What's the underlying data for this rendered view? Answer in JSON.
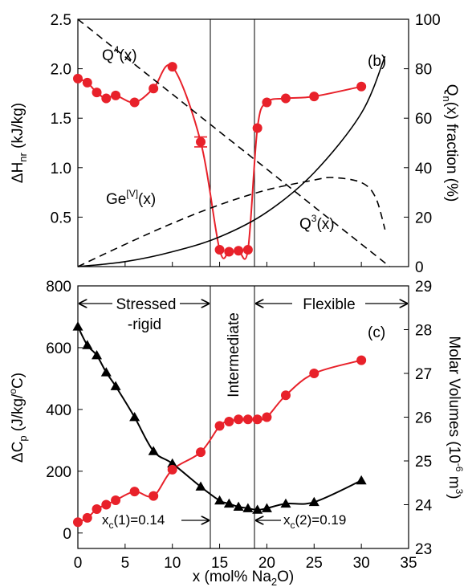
{
  "colors": {
    "red": "#e8212a",
    "black": "#000000"
  },
  "chart_data": [
    {
      "panel": "(b)",
      "type": "line",
      "ylabel_left": {
        "base": "ΔH",
        "sub": "nr",
        "rest": " (kJ/kg)"
      },
      "ylabel_right": {
        "base": "Q",
        "sub": "n",
        "rest": "(x) fraction (%)"
      },
      "xlim": [
        0,
        35
      ],
      "ylim_left": [
        0,
        2.5
      ],
      "ylim_right": [
        0,
        100
      ],
      "yticks_left": [
        "0.5",
        "1.0",
        "1.5",
        "2.0",
        "2.5"
      ],
      "yticks_left_values": [
        0.5,
        1.0,
        1.5,
        2.0,
        2.5
      ],
      "yticks_right": [
        "0",
        "20",
        "40",
        "60",
        "80",
        "100"
      ],
      "yticks_right_values": [
        0,
        20,
        40,
        60,
        80,
        100
      ],
      "grid": false,
      "series": [
        {
          "name": "ΔHnr",
          "axis": "left",
          "color": "red",
          "style": "markers+smooth",
          "x": [
            0,
            1,
            2,
            3,
            4,
            6,
            8,
            10,
            13,
            15,
            16,
            17,
            18,
            19,
            20,
            22,
            25,
            30
          ],
          "y": [
            1.9,
            1.86,
            1.76,
            1.7,
            1.73,
            1.66,
            1.8,
            2.02,
            1.26,
            0.17,
            0.15,
            0.16,
            0.17,
            1.4,
            1.66,
            1.7,
            1.72,
            1.82
          ],
          "error_bar": {
            "x": 13,
            "y": 1.26,
            "err": 0.05
          }
        },
        {
          "name": "Q4(x)",
          "axis": "right",
          "style": "dashed",
          "x": [
            0,
            5,
            10,
            15,
            20,
            25,
            30,
            33
          ],
          "y": [
            100,
            84.8,
            69.7,
            54.5,
            39.4,
            24.2,
            9.1,
            0
          ]
        },
        {
          "name": "Q3(x)",
          "axis": "right",
          "style": "solid",
          "x": [
            0,
            5,
            10,
            15,
            20,
            25,
            30,
            32.5
          ],
          "y": [
            0,
            2,
            6,
            12,
            22,
            38,
            62,
            85
          ]
        },
        {
          "name": "Ge[V](x)",
          "axis": "right",
          "style": "dashed",
          "x": [
            0,
            5,
            10,
            15,
            20,
            25,
            27,
            30,
            31.5,
            32.5
          ],
          "y": [
            0,
            9,
            17.5,
            25,
            31,
            35,
            36,
            34,
            28,
            15
          ]
        }
      ],
      "annotations": [
        {
          "base": "Q",
          "sup": "4",
          "rest": "(x)",
          "x": 2.5,
          "y_right": 91
        },
        {
          "base": "Q",
          "sup": "3",
          "rest": "(x)",
          "x": 25.5,
          "y_right": 10
        },
        {
          "base": "Ge",
          "sup": "[V]",
          "rest": "(x)",
          "x": 3,
          "y_right": 27
        },
        {
          "base": "(b)",
          "x": 32,
          "y_right": 88
        }
      ],
      "vlines": [
        14,
        19
      ]
    },
    {
      "panel": "(c)",
      "type": "line",
      "xlabel": {
        "base": "x (mol% Na",
        "sub": "2",
        "rest": "O)"
      },
      "ylabel_left": {
        "base": "ΔC",
        "sub": "p",
        "rest": " (J/kg/",
        "sup": "o",
        "rest2": "C)"
      },
      "ylabel_right": {
        "base": "Molar Volumes (10",
        "sup": "-6",
        "rest": " m",
        "sup2": "3",
        "rest2": ")"
      },
      "xlim": [
        0,
        35
      ],
      "ylim_left": [
        -50,
        800
      ],
      "ylim_right": [
        23,
        29
      ],
      "xticks": [
        "0",
        "5",
        "10",
        "15",
        "20",
        "25",
        "30",
        "35"
      ],
      "xticks_values": [
        0,
        5,
        10,
        15,
        20,
        25,
        30,
        35
      ],
      "yticks_left": [
        "0",
        "200",
        "400",
        "600",
        "800"
      ],
      "yticks_left_values": [
        0,
        200,
        400,
        600,
        800
      ],
      "yticks_right": [
        "23",
        "24",
        "25",
        "26",
        "27",
        "28",
        "29"
      ],
      "yticks_right_values": [
        23,
        24,
        25,
        26,
        27,
        28,
        29
      ],
      "grid": false,
      "series": [
        {
          "name": "ΔCp",
          "axis": "left",
          "color": "black",
          "marker": "triangle",
          "style": "markers+smooth",
          "x": [
            0,
            1,
            2,
            3,
            4,
            6,
            8,
            10,
            13,
            15,
            16,
            17,
            18,
            19,
            20,
            22,
            25,
            30
          ],
          "y": [
            668,
            608,
            575,
            520,
            475,
            375,
            265,
            225,
            150,
            105,
            95,
            85,
            80,
            75,
            80,
            95,
            100,
            170
          ]
        },
        {
          "name": "Molar Volumes",
          "axis": "right",
          "color": "red",
          "marker": "circle",
          "style": "markers+smooth",
          "x": [
            0,
            1,
            2,
            3,
            4,
            6,
            8,
            10,
            13,
            15,
            16,
            17,
            18,
            19,
            20,
            22,
            25,
            30
          ],
          "y": [
            23.6,
            23.7,
            23.9,
            24.0,
            24.1,
            24.3,
            24.2,
            24.8,
            25.2,
            25.8,
            25.9,
            25.95,
            25.95,
            25.95,
            26.0,
            26.5,
            27.0,
            27.3
          ]
        }
      ],
      "region_labels": {
        "stressed_line1": "Stressed",
        "stressed_line2": "-rigid",
        "intermediate": "Intermediate",
        "flexible": "Flexible"
      },
      "thresholds": [
        {
          "base": "x",
          "sub": "c",
          "rest": "(1)=0.14",
          "x": 14
        },
        {
          "base": "x",
          "sub": "c",
          "rest": "(2)=0.19",
          "x": 19
        }
      ],
      "annotations": [
        {
          "base": "(c)",
          "x": 32,
          "y": 580
        }
      ],
      "vlines": [
        14,
        19
      ]
    }
  ]
}
